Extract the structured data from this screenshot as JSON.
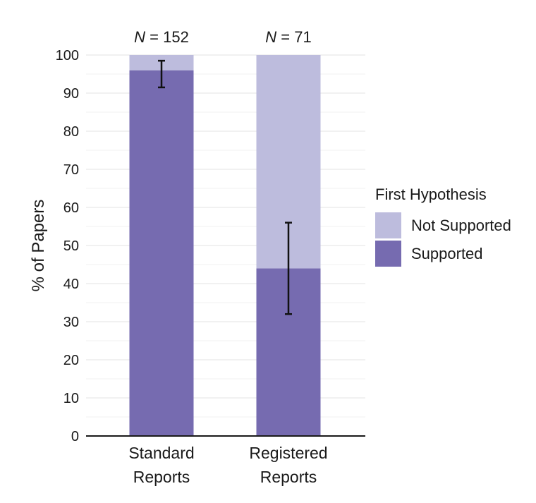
{
  "chart_data": {
    "type": "bar",
    "stacked": true,
    "categories": [
      {
        "lines": [
          "Standard",
          "Reports"
        ],
        "n_prefix": "N",
        "n_suffix": " = 152"
      },
      {
        "lines": [
          "Registered",
          "Reports"
        ],
        "n_prefix": "N",
        "n_suffix": " = 71"
      }
    ],
    "series": [
      {
        "name": "Supported",
        "values": [
          96,
          44
        ],
        "color": "#766bb0"
      },
      {
        "name": "Not Supported",
        "values": [
          4,
          56
        ],
        "color": "#bdbcdd"
      }
    ],
    "error_bars": [
      {
        "low": 91.5,
        "high": 98.5
      },
      {
        "low": 32,
        "high": 56
      }
    ],
    "ylabel": "% of Papers",
    "ylim": [
      0,
      100
    ],
    "yticks": [
      "0",
      "10",
      "20",
      "30",
      "40",
      "50",
      "60",
      "70",
      "80",
      "90",
      "100"
    ],
    "grid": true,
    "legend": {
      "title": "First Hypothesis",
      "position": "right",
      "items": [
        "Not Supported",
        "Supported"
      ]
    }
  }
}
